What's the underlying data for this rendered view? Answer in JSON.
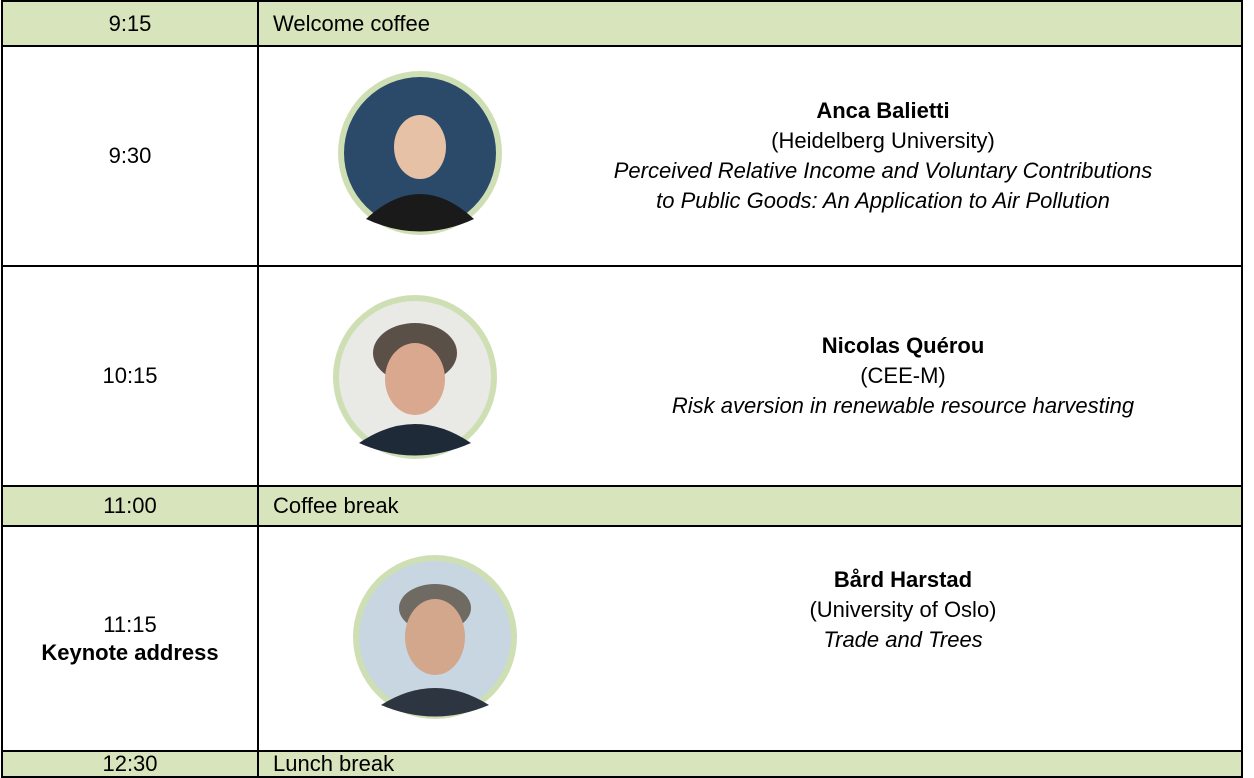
{
  "schedule": [
    {
      "time": "9:15",
      "event": "Welcome coffee"
    },
    {
      "time": "9:30",
      "speaker": "Anca Balietti",
      "affiliation": "(Heidelberg University)",
      "talk_lines": [
        "Perceived Relative Income and Voluntary Contributions",
        "to Public Goods: An Application to Air Pollution"
      ]
    },
    {
      "time": "10:15",
      "speaker": "Nicolas Quérou",
      "affiliation": "(CEE-M)",
      "talk_lines": [
        "Risk aversion in renewable resource harvesting"
      ]
    },
    {
      "time": "11:00",
      "event": "Coffee break"
    },
    {
      "time": "11:15",
      "label": "Keynote address",
      "speaker": "Bård Harstad",
      "affiliation": "(University of Oslo)",
      "talk_lines": [
        "Trade and Trees"
      ]
    },
    {
      "time": "12:30",
      "event": "Lunch break"
    }
  ]
}
